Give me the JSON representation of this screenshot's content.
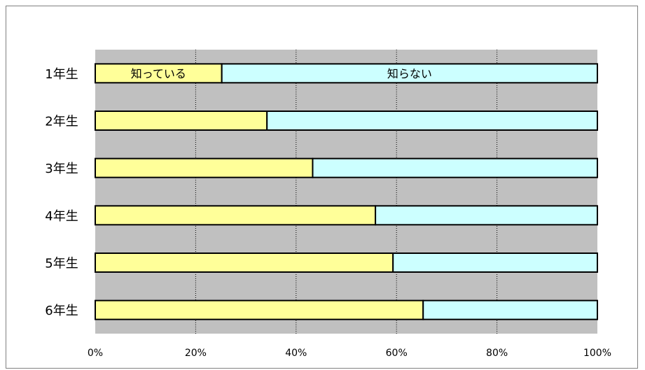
{
  "chart_data": {
    "type": "bar",
    "orientation": "horizontal",
    "stacked": true,
    "percent": true,
    "categories": [
      "1年生",
      "2年生",
      "3年生",
      "4年生",
      "5年生",
      "6年生"
    ],
    "series": [
      {
        "name": "知っている",
        "values": [
          25.2,
          34.2,
          43.3,
          55.8,
          59.3,
          65.3
        ]
      },
      {
        "name": "知らない",
        "values": [
          74.8,
          65.8,
          56.7,
          44.2,
          40.7,
          34.7
        ]
      }
    ],
    "series_colors": [
      "#ffff99",
      "#ccffff"
    ],
    "plot_background": "#c0c0c0",
    "xlim": [
      0,
      100
    ],
    "x_ticks": [
      "0%",
      "20%",
      "40%",
      "60%",
      "80%",
      "100%"
    ],
    "grid": "vertical-dotted",
    "legend": "none",
    "title": "",
    "xlabel": "",
    "ylabel": ""
  }
}
